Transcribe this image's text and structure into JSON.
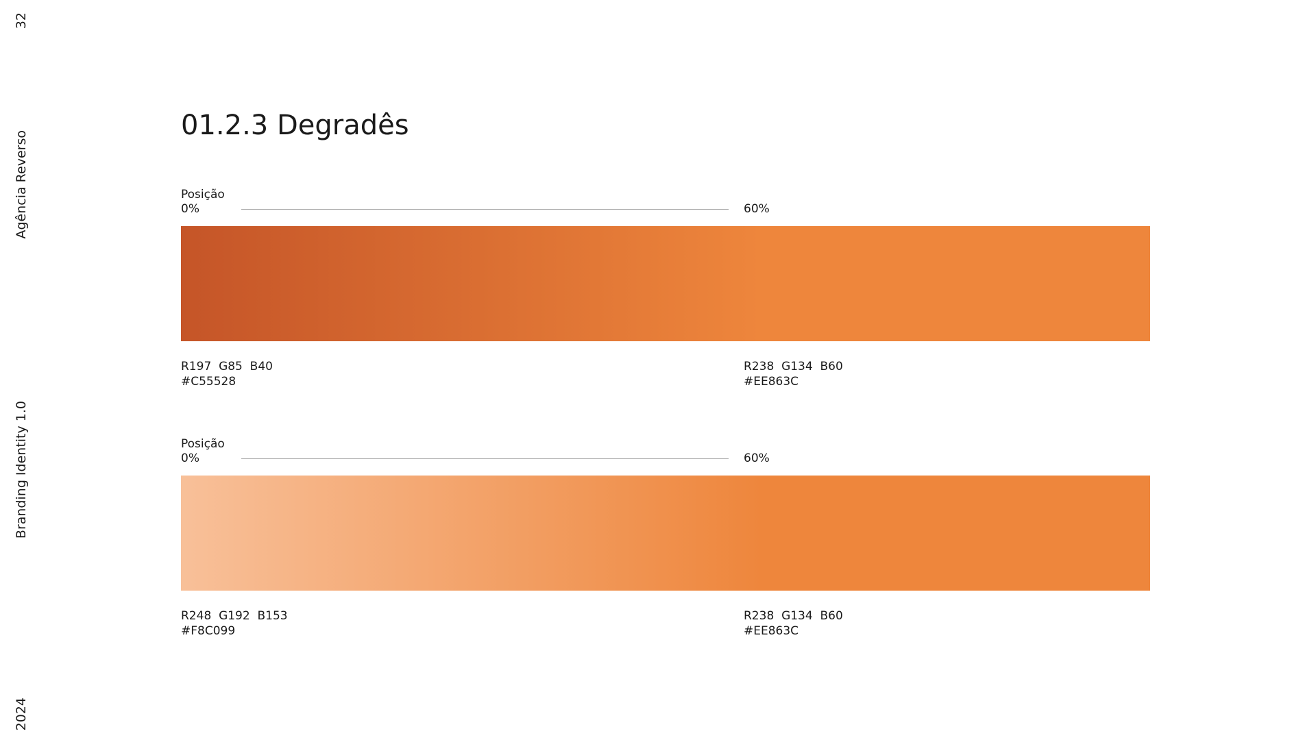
{
  "sidebar": {
    "page_number": "32",
    "agency": "Agência Reverso",
    "document": "Branding Identity 1.0",
    "year": "2024"
  },
  "title": "01.2.3 Degradês",
  "gradients": [
    {
      "position_label": "Posição",
      "start_position": "0%",
      "end_position": "60%",
      "start": {
        "rgb": "R197  G85  B40",
        "hex": "#C55528"
      },
      "end": {
        "rgb": "R238  G134  B60",
        "hex": "#EE863C"
      }
    },
    {
      "position_label": "Posição",
      "start_position": "0%",
      "end_position": "60%",
      "start": {
        "rgb": "R248  G192  B153",
        "hex": "#F8C099"
      },
      "end": {
        "rgb": "R238  G134  B60",
        "hex": "#EE863C"
      }
    }
  ]
}
